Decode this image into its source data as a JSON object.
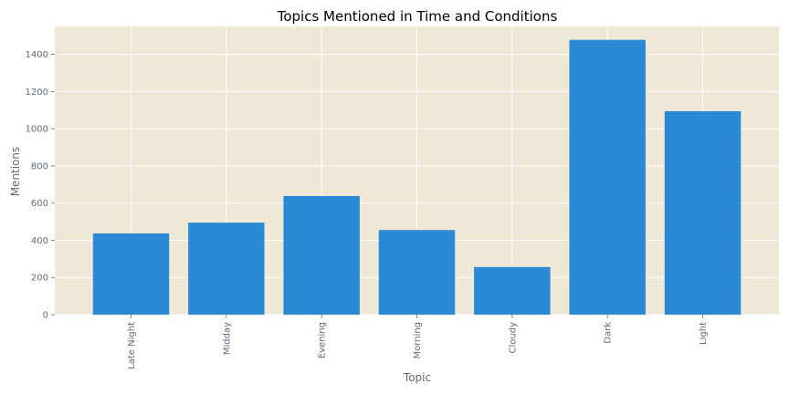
{
  "chart_data": {
    "type": "bar",
    "title": "Topics Mentioned in Time and Conditions",
    "xlabel": "Topic",
    "ylabel": "Mentions",
    "categories": [
      "Late Night",
      "Midday",
      "Evening",
      "Morning",
      "Cloudy",
      "Dark",
      "Light"
    ],
    "values": [
      437,
      495,
      638,
      455,
      256,
      1478,
      1094
    ],
    "ylim": [
      0,
      1550
    ],
    "yticks": [
      0,
      200,
      400,
      600,
      800,
      1000,
      1200,
      1400
    ],
    "ytick_labels": [
      "0",
      "200",
      "400",
      "600",
      "800",
      "1000",
      "1200",
      "1400"
    ],
    "grid": true,
    "legend": "none",
    "colors": {
      "bar": "#2a8bd4",
      "plot_background": "#efe8d6",
      "grid": "#ffffff",
      "text": "#5f6a77"
    }
  }
}
